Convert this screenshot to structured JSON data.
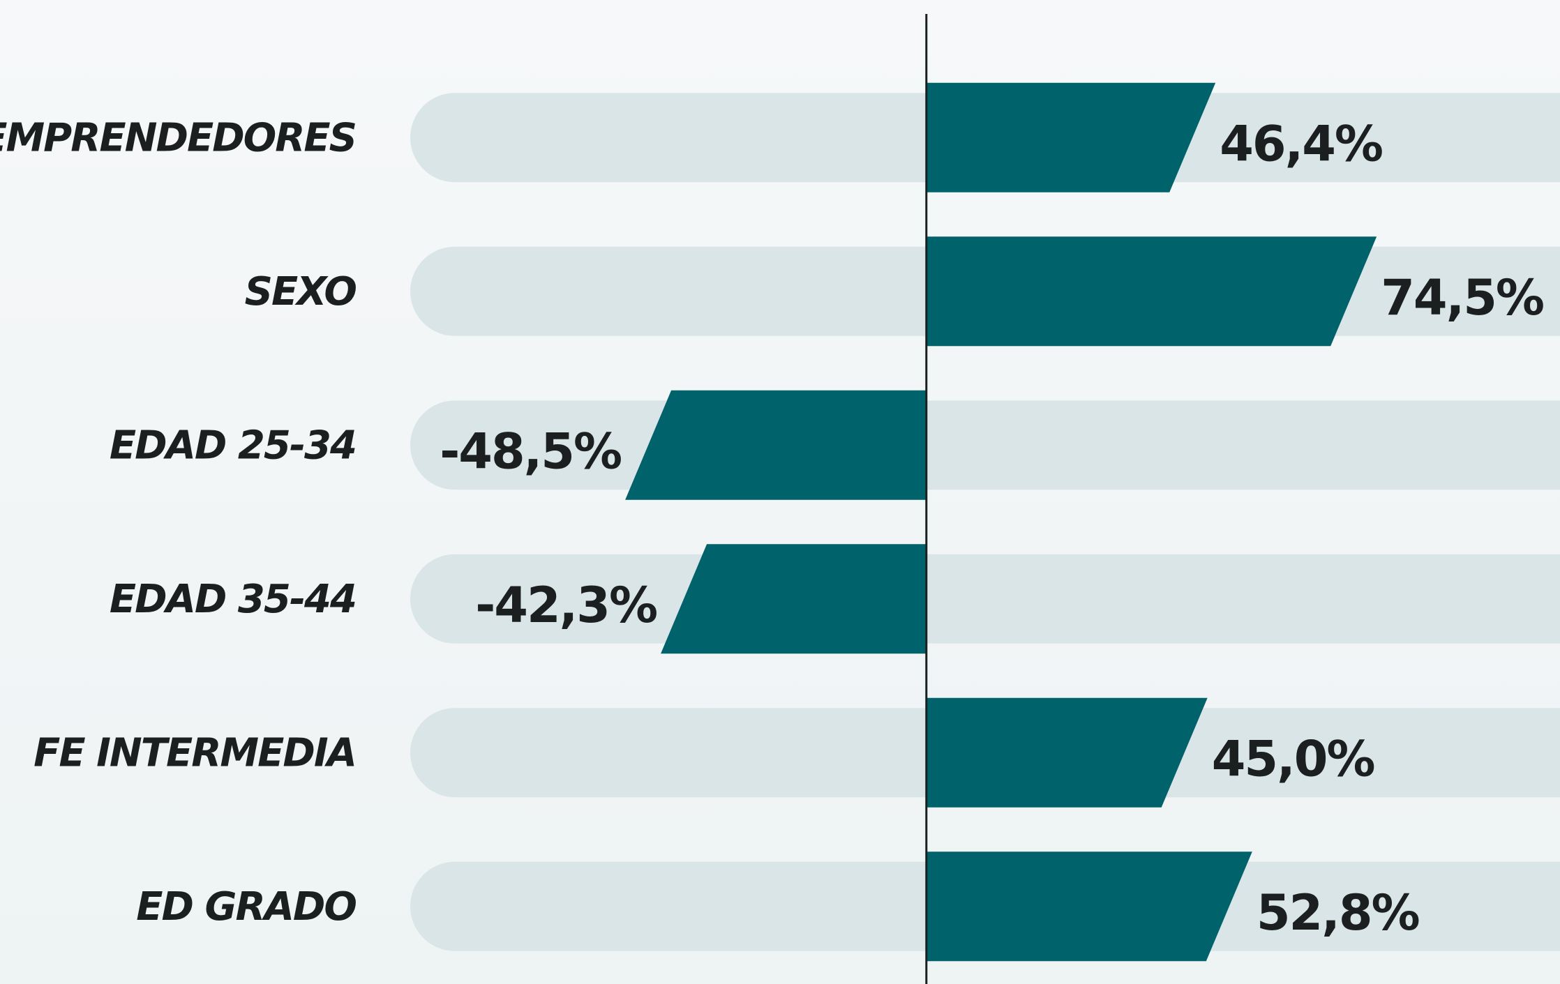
{
  "chart_data": {
    "type": "diverging-bar",
    "categories": [
      "EMPRENDEDORES",
      "SEXO",
      "EDAD 25-34",
      "EDAD 35-44",
      "FE INTERMEDIA",
      "ED GRADO"
    ],
    "values": [
      46.4,
      74.5,
      -48.5,
      -42.3,
      45.0,
      52.8
    ],
    "value_labels": [
      "46,4%",
      "74,5%",
      "-48,5%",
      "-42,3%",
      "45,0%",
      "52,8%"
    ],
    "color": "#00626a",
    "track_color": "#dae5e8",
    "xlim": [
      -90,
      110
    ]
  }
}
